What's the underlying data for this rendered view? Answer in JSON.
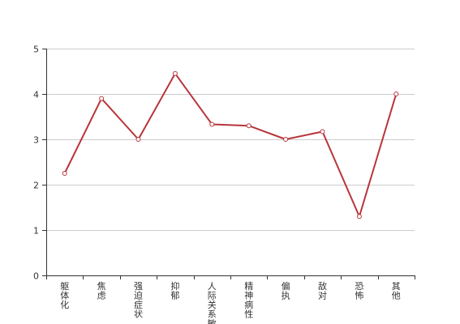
{
  "colors": {
    "line": "#b8353a",
    "point_fill": "#ffffff",
    "axis": "#333333",
    "grid": "#cccccc",
    "text": "#333333"
  },
  "chart_data": {
    "type": "line",
    "title": "",
    "xlabel": "",
    "ylabel": "",
    "categories": [
      "躯体化",
      "焦虑",
      "强迫症状",
      "抑郁",
      "人际关系敏感",
      "精神病性",
      "偏执",
      "敌对",
      "恐怖",
      "其他"
    ],
    "series": [
      {
        "values": [
          2.25,
          3.9,
          3.0,
          4.45,
          3.33,
          3.3,
          3.0,
          3.17,
          1.3,
          4.0
        ]
      }
    ],
    "ylim": [
      0,
      5
    ],
    "yticks": [
      "0",
      "1",
      "2",
      "3",
      "4",
      "5"
    ],
    "grid": true,
    "legend": "none"
  }
}
